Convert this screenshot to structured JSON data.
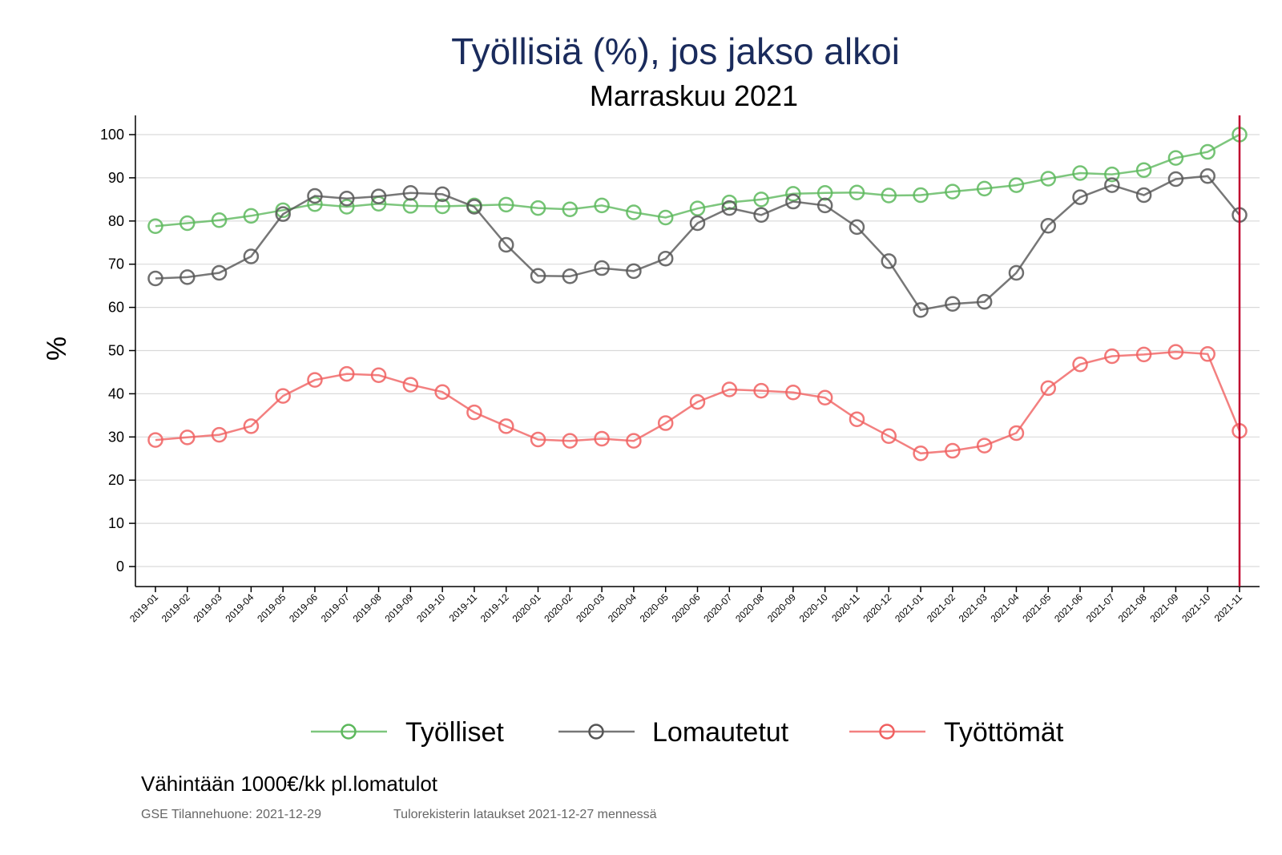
{
  "chart_data": {
    "type": "line",
    "title": "Työllisiä (%), jos jakso alkoi",
    "subtitle": "Marraskuu 2021",
    "ylabel": "%",
    "xlabel": "",
    "ylim": [
      -4,
      104
    ],
    "yticks": [
      0,
      10,
      20,
      30,
      40,
      50,
      60,
      70,
      80,
      90,
      100
    ],
    "grid": true,
    "legend_position": "bottom",
    "reference_line": {
      "x": "2021-11",
      "color": "#c0002e"
    },
    "categories": [
      "2019-01",
      "2019-02",
      "2019-03",
      "2019-04",
      "2019-05",
      "2019-06",
      "2019-07",
      "2019-08",
      "2019-09",
      "2019-10",
      "2019-11",
      "2019-12",
      "2020-01",
      "2020-02",
      "2020-03",
      "2020-04",
      "2020-05",
      "2020-06",
      "2020-07",
      "2020-08",
      "2020-09",
      "2020-10",
      "2020-11",
      "2020-12",
      "2021-01",
      "2021-02",
      "2021-03",
      "2021-04",
      "2021-05",
      "2021-06",
      "2021-07",
      "2021-08",
      "2021-09",
      "2021-10",
      "2021-11"
    ],
    "series": [
      {
        "name": "Työlliset",
        "color": "#5cb85c",
        "values": [
          78.8,
          79.5,
          80.2,
          81.2,
          82.5,
          83.9,
          83.3,
          84.0,
          83.5,
          83.4,
          83.6,
          83.8,
          83.0,
          82.7,
          83.6,
          82.0,
          80.8,
          82.9,
          84.3,
          85.0,
          86.3,
          86.5,
          86.6,
          85.9,
          86.0,
          86.8,
          87.5,
          88.3,
          89.8,
          91.1,
          90.8,
          91.8,
          94.6,
          96.0,
          100.0
        ]
      },
      {
        "name": "Lomautetut",
        "color": "#555555",
        "values": [
          66.7,
          67.0,
          68.0,
          71.8,
          81.6,
          85.8,
          85.2,
          85.7,
          86.5,
          86.2,
          83.3,
          74.5,
          67.3,
          67.2,
          69.1,
          68.4,
          71.3,
          79.5,
          83.0,
          81.4,
          84.5,
          83.6,
          78.6,
          70.7,
          59.4,
          60.8,
          61.3,
          68.0,
          78.9,
          85.5,
          88.3,
          86.0,
          89.7,
          90.4,
          81.4
        ]
      },
      {
        "name": "Työttömät",
        "color": "#f06060",
        "values": [
          29.3,
          29.9,
          30.5,
          32.5,
          39.5,
          43.2,
          44.6,
          44.3,
          42.1,
          40.4,
          35.7,
          32.5,
          29.4,
          29.1,
          29.6,
          29.1,
          33.2,
          38.1,
          41.0,
          40.7,
          40.3,
          39.1,
          34.1,
          30.2,
          26.2,
          26.8,
          28.0,
          30.9,
          41.3,
          46.8,
          48.7,
          49.1,
          49.7,
          49.2,
          31.4
        ]
      }
    ],
    "note": "Vähintään 1000€/kk pl.lomatulot",
    "source_left": "GSE Tilannehuone: 2021-12-29",
    "source_right": "Tulorekisterin lataukset 2021-12-27 mennessä"
  }
}
